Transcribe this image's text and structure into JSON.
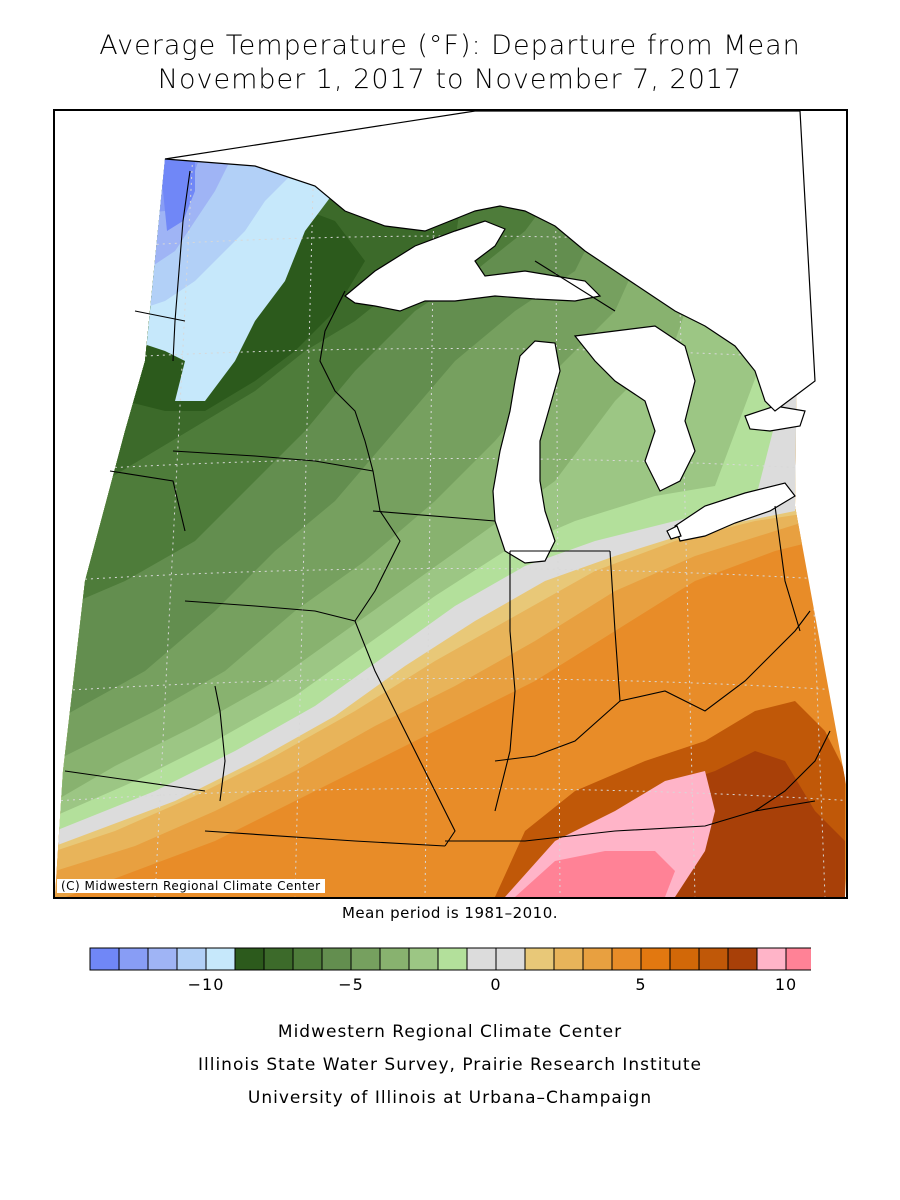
{
  "title": {
    "line1": "Average Temperature (°F): Departure from Mean",
    "line2": "November 1, 2017 to November 7, 2017"
  },
  "map": {
    "copyright": "(C) Midwestern Regional Climate Center",
    "mean_period": "Mean period is 1981–2010."
  },
  "legend": {
    "bins": [
      {
        "range": "-14 to -13",
        "color": "#7087f7"
      },
      {
        "range": "-13 to -12",
        "color": "#889df5"
      },
      {
        "range": "-12 to -11",
        "color": "#9fb4f5"
      },
      {
        "range": "-11 to -10",
        "color": "#b2d0f7"
      },
      {
        "range": "-10 to -9",
        "color": "#c6e8fb"
      },
      {
        "range": "-9 to -8",
        "color": "#2c5a1c"
      },
      {
        "range": "-8 to -7",
        "color": "#3c6a2a"
      },
      {
        "range": "-7 to -6",
        "color": "#4e7c3a"
      },
      {
        "range": "-6 to -5",
        "color": "#638e4f"
      },
      {
        "range": "-5 to -4",
        "color": "#76a05f"
      },
      {
        "range": "-4 to -3",
        "color": "#88b26f"
      },
      {
        "range": "-3 to -2",
        "color": "#9cc684"
      },
      {
        "range": "-2 to -1",
        "color": "#b3e09b"
      },
      {
        "range": "-1 to 0",
        "color": "#dcdcdc"
      },
      {
        "range": "0 to 1",
        "color": "#dcdcdc"
      },
      {
        "range": "1 to 2",
        "color": "#e8c878"
      },
      {
        "range": "2 to 3",
        "color": "#e8b45a"
      },
      {
        "range": "3 to 4",
        "color": "#e8a040"
      },
      {
        "range": "4 to 5",
        "color": "#e88c28"
      },
      {
        "range": "5 to 6",
        "color": "#e27810"
      },
      {
        "range": "6 to 7",
        "color": "#d26808"
      },
      {
        "range": "7 to 8",
        "color": "#c05808"
      },
      {
        "range": "8 to 9",
        "color": "#a84008"
      },
      {
        "range": "9 to 10",
        "color": "#ffb4c8"
      },
      {
        "range": "10 to 11",
        "color": "#ff8296"
      }
    ],
    "ticks": [
      "−10",
      "−5",
      "0",
      "5",
      "10"
    ]
  },
  "footer": {
    "line1": "Midwestern Regional Climate Center",
    "line2": "Illinois State Water Survey, Prairie Research Institute",
    "line3": "University of Illinois at Urbana–Champaign"
  },
  "colors": {
    "water": "#ffffff",
    "boundary": "#000000",
    "graticule": "#d8d8d8"
  }
}
